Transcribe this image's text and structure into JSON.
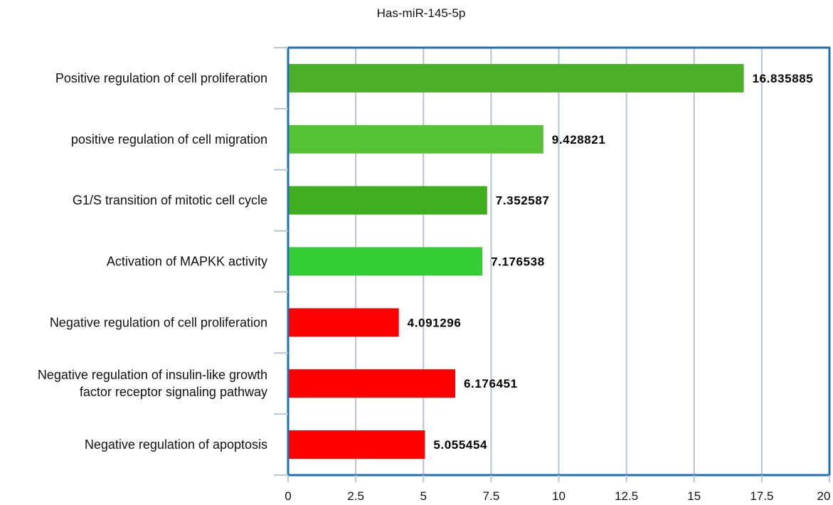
{
  "chart_data": {
    "type": "bar",
    "orientation": "horizontal",
    "title": "Has-miR-145-5p",
    "xlabel": "",
    "ylabel": "",
    "xlim": [
      0,
      20
    ],
    "x_ticks": [
      "0",
      "2.5",
      "5",
      "7.5",
      "10",
      "12.5",
      "15",
      "17.5",
      "20"
    ],
    "grid": "vertical",
    "legend": "none",
    "categories": [
      [
        "Positive regulation of cell proliferation"
      ],
      [
        "positive regulation of cell migration"
      ],
      [
        "G1/S transition of mitotic cell cycle"
      ],
      [
        "Activation of MAPKK activity"
      ],
      [
        "Negative regulation of cell proliferation"
      ],
      [
        "Negative regulation of insulin-like growth",
        "factor receptor signaling pathway"
      ],
      [
        "Negative regulation of apoptosis"
      ]
    ],
    "values": [
      16.835885,
      9.428821,
      7.352587,
      7.176538,
      4.091296,
      6.176451,
      5.055454
    ],
    "value_labels": [
      "16.835885",
      "9.428821",
      "7.352587",
      "7.176538",
      "4.091296",
      "6.176451",
      "5.055454"
    ],
    "bar_colors": [
      "#4caf2a",
      "#55c235",
      "#3fae1e",
      "#35cc35",
      "#ff0000",
      "#ff0000",
      "#ff0000"
    ],
    "frame_color": "#1f6fb5",
    "grid_color": "#b8c4d4"
  }
}
